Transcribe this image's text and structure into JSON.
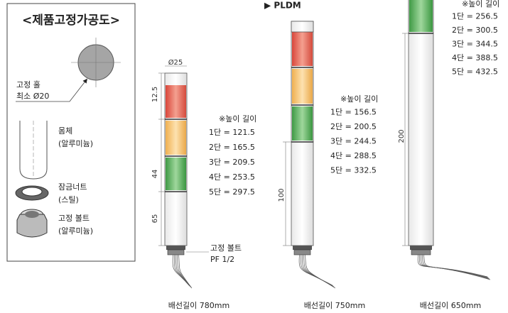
{
  "fixing_diagram": {
    "title": "<제품고정가공도>",
    "hole_label": "고정 홀",
    "hole_size": "최소 Ø20",
    "parts": [
      {
        "name": "몸체",
        "material": "(알루미늄)"
      },
      {
        "name": "잠금너트",
        "material": "(스틸)"
      },
      {
        "name": "고정 볼트",
        "material": "(알루미늄)"
      }
    ]
  },
  "towers": [
    {
      "diameter": "Ø25",
      "dimensions": [
        "12.5",
        "44",
        "65"
      ],
      "height_title": "※높이 길이",
      "heights": [
        "1단 = 121.5",
        "2단 = 165.5",
        "3단 = 209.5",
        "4단 = 253.5",
        "5단 = 297.5"
      ],
      "bolt_label": "고정 볼트",
      "bolt_thread": "PF 1/2",
      "cable": "배선길이 780mm"
    },
    {
      "model": "▶ PLDM",
      "dimensions": [
        "100"
      ],
      "height_title": "※높이 길이",
      "heights": [
        "1단 = 156.5",
        "2단 = 200.5",
        "3단 = 244.5",
        "4단 = 288.5",
        "5단 = 332.5"
      ],
      "cable": "배선길이 750mm"
    },
    {
      "dimensions": [
        "200"
      ],
      "height_title": "※높이 길이",
      "heights": [
        "1단 = 256.5",
        "2단 = 300.5",
        "3단 = 344.5",
        "4단 = 388.5",
        "5단 = 432.5"
      ],
      "cable": "배선길이 650mm"
    }
  ]
}
